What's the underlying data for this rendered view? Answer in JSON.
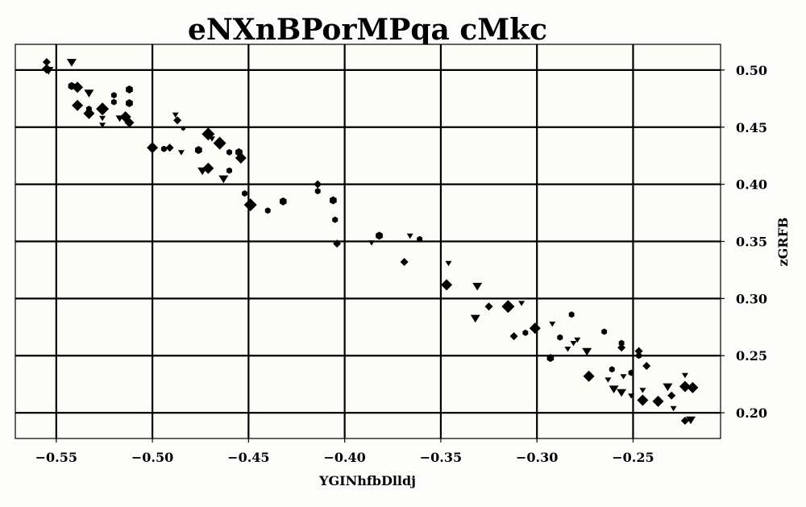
{
  "chart_data": {
    "type": "scatter",
    "title": "eNXnBPorMPqa cMkc",
    "xlabel": "YGINhfbDlldj",
    "ylabel": "zGRFB",
    "xlim": [
      -0.5713,
      -0.2045
    ],
    "ylim": [
      0.1775,
      0.5225
    ],
    "x_ticks": [
      -0.55,
      -0.5,
      -0.45,
      -0.4,
      -0.35,
      -0.3,
      -0.25
    ],
    "x_tick_labels": [
      "−0.55",
      "−0.50",
      "−0.45",
      "−0.40",
      "−0.35",
      "−0.30",
      "−0.25"
    ],
    "y_ticks": [
      0.2,
      0.25,
      0.3,
      0.35,
      0.4,
      0.45,
      0.5
    ],
    "y_tick_labels": [
      "0.20",
      "0.25",
      "0.30",
      "0.35",
      "0.40",
      "0.45",
      "0.50"
    ],
    "y_axis_side": "right",
    "grid": true,
    "background": "#fcfdf7",
    "marker_color": "#000000",
    "points": [
      {
        "x": -0.555,
        "y": 0.507,
        "marker": "diamond",
        "size": 5
      },
      {
        "x": -0.555,
        "y": 0.501,
        "marker": "diamond",
        "size": 6
      },
      {
        "x": -0.554,
        "y": 0.5,
        "marker": "triangle",
        "size": 6
      },
      {
        "x": -0.542,
        "y": 0.507,
        "marker": "triangle",
        "size": 6
      },
      {
        "x": -0.542,
        "y": 0.486,
        "marker": "hexagon",
        "size": 5
      },
      {
        "x": -0.539,
        "y": 0.485,
        "marker": "diamond",
        "size": 7
      },
      {
        "x": -0.533,
        "y": 0.48,
        "marker": "triangle",
        "size": 6
      },
      {
        "x": -0.539,
        "y": 0.469,
        "marker": "diamond",
        "size": 7
      },
      {
        "x": -0.533,
        "y": 0.466,
        "marker": "hexagon",
        "size": 4
      },
      {
        "x": -0.533,
        "y": 0.462,
        "marker": "diamond",
        "size": 7
      },
      {
        "x": -0.526,
        "y": 0.466,
        "marker": "diamond",
        "size": 8
      },
      {
        "x": -0.526,
        "y": 0.458,
        "marker": "triangle",
        "size": 4
      },
      {
        "x": -0.526,
        "y": 0.452,
        "marker": "triangle",
        "size": 4
      },
      {
        "x": -0.52,
        "y": 0.478,
        "marker": "hexagon",
        "size": 4
      },
      {
        "x": -0.52,
        "y": 0.472,
        "marker": "hexagon",
        "size": 4
      },
      {
        "x": -0.512,
        "y": 0.483,
        "marker": "hexagon",
        "size": 5
      },
      {
        "x": -0.512,
        "y": 0.471,
        "marker": "hexagon",
        "size": 5
      },
      {
        "x": -0.517,
        "y": 0.458,
        "marker": "triangle",
        "size": 5
      },
      {
        "x": -0.514,
        "y": 0.459,
        "marker": "diamond",
        "size": 7
      },
      {
        "x": -0.512,
        "y": 0.454,
        "marker": "diamond",
        "size": 6
      },
      {
        "x": -0.5,
        "y": 0.432,
        "marker": "diamond",
        "size": 7
      },
      {
        "x": -0.494,
        "y": 0.431,
        "marker": "hexagon",
        "size": 4
      },
      {
        "x": -0.491,
        "y": 0.432,
        "marker": "diamond",
        "size": 5
      },
      {
        "x": -0.488,
        "y": 0.461,
        "marker": "triangle",
        "size": 4
      },
      {
        "x": -0.487,
        "y": 0.456,
        "marker": "diamond",
        "size": 5
      },
      {
        "x": -0.484,
        "y": 0.449,
        "marker": "hexagon",
        "size": 3
      },
      {
        "x": -0.485,
        "y": 0.428,
        "marker": "triangle",
        "size": 4
      },
      {
        "x": -0.476,
        "y": 0.43,
        "marker": "hexagon",
        "size": 5
      },
      {
        "x": -0.471,
        "y": 0.444,
        "marker": "diamond",
        "size": 8
      },
      {
        "x": -0.469,
        "y": 0.44,
        "marker": "triangle",
        "size": 4
      },
      {
        "x": -0.465,
        "y": 0.436,
        "marker": "diamond",
        "size": 8
      },
      {
        "x": -0.46,
        "y": 0.428,
        "marker": "hexagon",
        "size": 4
      },
      {
        "x": -0.455,
        "y": 0.428,
        "marker": "hexagon",
        "size": 5
      },
      {
        "x": -0.454,
        "y": 0.423,
        "marker": "diamond",
        "size": 7
      },
      {
        "x": -0.474,
        "y": 0.412,
        "marker": "triangle",
        "size": 6
      },
      {
        "x": -0.471,
        "y": 0.414,
        "marker": "diamond",
        "size": 7
      },
      {
        "x": -0.46,
        "y": 0.412,
        "marker": "hexagon",
        "size": 4
      },
      {
        "x": -0.463,
        "y": 0.405,
        "marker": "triangle",
        "size": 6
      },
      {
        "x": -0.452,
        "y": 0.392,
        "marker": "hexagon",
        "size": 4
      },
      {
        "x": -0.449,
        "y": 0.382,
        "marker": "diamond",
        "size": 8
      },
      {
        "x": -0.44,
        "y": 0.377,
        "marker": "hexagon",
        "size": 4
      },
      {
        "x": -0.432,
        "y": 0.385,
        "marker": "hexagon",
        "size": 5
      },
      {
        "x": -0.414,
        "y": 0.4,
        "marker": "diamond",
        "size": 5
      },
      {
        "x": -0.414,
        "y": 0.394,
        "marker": "hexagon",
        "size": 4
      },
      {
        "x": -0.406,
        "y": 0.386,
        "marker": "hexagon",
        "size": 5
      },
      {
        "x": -0.405,
        "y": 0.369,
        "marker": "hexagon",
        "size": 4
      },
      {
        "x": -0.404,
        "y": 0.348,
        "marker": "diamond",
        "size": 5
      },
      {
        "x": -0.386,
        "y": 0.349,
        "marker": "triangle",
        "size": 4
      },
      {
        "x": -0.382,
        "y": 0.355,
        "marker": "hexagon",
        "size": 5
      },
      {
        "x": -0.366,
        "y": 0.355,
        "marker": "triangle",
        "size": 4
      },
      {
        "x": -0.361,
        "y": 0.352,
        "marker": "hexagon",
        "size": 4
      },
      {
        "x": -0.369,
        "y": 0.332,
        "marker": "diamond",
        "size": 5
      },
      {
        "x": -0.346,
        "y": 0.331,
        "marker": "triangle",
        "size": 4
      },
      {
        "x": -0.347,
        "y": 0.312,
        "marker": "diamond",
        "size": 7
      },
      {
        "x": -0.331,
        "y": 0.311,
        "marker": "triangle",
        "size": 6
      },
      {
        "x": -0.332,
        "y": 0.283,
        "marker": "triangle",
        "size": 6
      },
      {
        "x": -0.325,
        "y": 0.293,
        "marker": "diamond",
        "size": 5
      },
      {
        "x": -0.315,
        "y": 0.293,
        "marker": "diamond",
        "size": 8
      },
      {
        "x": -0.308,
        "y": 0.296,
        "marker": "triangle",
        "size": 4
      },
      {
        "x": -0.312,
        "y": 0.267,
        "marker": "diamond",
        "size": 5
      },
      {
        "x": -0.306,
        "y": 0.27,
        "marker": "hexagon",
        "size": 4
      },
      {
        "x": -0.301,
        "y": 0.274,
        "marker": "diamond",
        "size": 7
      },
      {
        "x": -0.292,
        "y": 0.278,
        "marker": "triangle",
        "size": 4
      },
      {
        "x": -0.282,
        "y": 0.286,
        "marker": "hexagon",
        "size": 4
      },
      {
        "x": -0.288,
        "y": 0.266,
        "marker": "hexagon",
        "size": 4
      },
      {
        "x": -0.284,
        "y": 0.256,
        "marker": "triangle",
        "size": 4
      },
      {
        "x": -0.281,
        "y": 0.261,
        "marker": "triangle",
        "size": 4
      },
      {
        "x": -0.279,
        "y": 0.264,
        "marker": "triangle",
        "size": 4
      },
      {
        "x": -0.293,
        "y": 0.248,
        "marker": "hexagon",
        "size": 5
      },
      {
        "x": -0.274,
        "y": 0.254,
        "marker": "triangle",
        "size": 6
      },
      {
        "x": -0.265,
        "y": 0.271,
        "marker": "hexagon",
        "size": 4
      },
      {
        "x": -0.256,
        "y": 0.261,
        "marker": "hexagon",
        "size": 4
      },
      {
        "x": -0.256,
        "y": 0.257,
        "marker": "diamond",
        "size": 5
      },
      {
        "x": -0.273,
        "y": 0.232,
        "marker": "diamond",
        "size": 7
      },
      {
        "x": -0.263,
        "y": 0.229,
        "marker": "triangle",
        "size": 4
      },
      {
        "x": -0.261,
        "y": 0.238,
        "marker": "hexagon",
        "size": 4
      },
      {
        "x": -0.255,
        "y": 0.232,
        "marker": "triangle",
        "size": 4
      },
      {
        "x": -0.251,
        "y": 0.235,
        "marker": "hexagon",
        "size": 4
      },
      {
        "x": -0.247,
        "y": 0.254,
        "marker": "diamond",
        "size": 5
      },
      {
        "x": -0.247,
        "y": 0.25,
        "marker": "hexagon",
        "size": 4
      },
      {
        "x": -0.243,
        "y": 0.241,
        "marker": "diamond",
        "size": 5
      },
      {
        "x": -0.26,
        "y": 0.221,
        "marker": "triangle",
        "size": 6
      },
      {
        "x": -0.256,
        "y": 0.218,
        "marker": "triangle",
        "size": 6
      },
      {
        "x": -0.251,
        "y": 0.215,
        "marker": "triangle",
        "size": 4
      },
      {
        "x": -0.245,
        "y": 0.22,
        "marker": "triangle",
        "size": 4
      },
      {
        "x": -0.245,
        "y": 0.211,
        "marker": "diamond",
        "size": 7
      },
      {
        "x": -0.237,
        "y": 0.21,
        "marker": "diamond",
        "size": 7
      },
      {
        "x": -0.232,
        "y": 0.223,
        "marker": "triangle",
        "size": 6
      },
      {
        "x": -0.23,
        "y": 0.215,
        "marker": "diamond",
        "size": 5
      },
      {
        "x": -0.229,
        "y": 0.204,
        "marker": "triangle",
        "size": 4
      },
      {
        "x": -0.223,
        "y": 0.233,
        "marker": "triangle",
        "size": 4
      },
      {
        "x": -0.223,
        "y": 0.223,
        "marker": "diamond",
        "size": 7
      },
      {
        "x": -0.219,
        "y": 0.222,
        "marker": "diamond",
        "size": 7
      },
      {
        "x": -0.223,
        "y": 0.193,
        "marker": "diamond",
        "size": 5
      },
      {
        "x": -0.22,
        "y": 0.194,
        "marker": "triangle",
        "size": 6
      }
    ]
  }
}
